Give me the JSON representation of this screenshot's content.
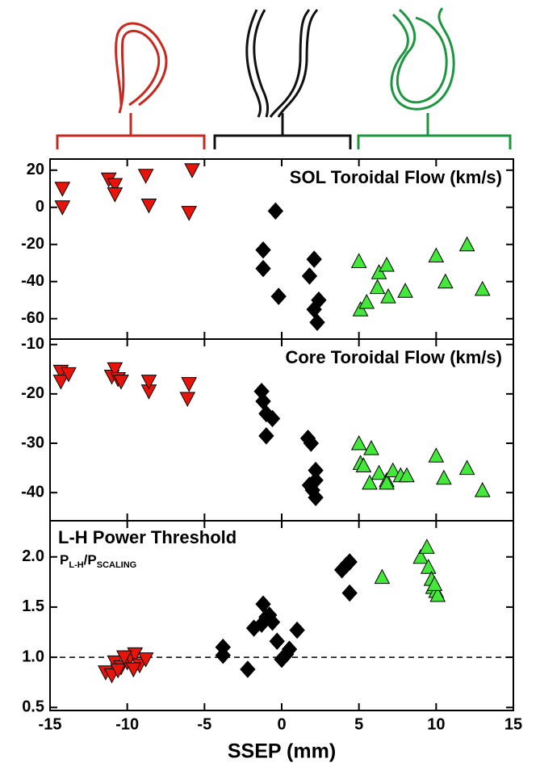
{
  "chart_data": [
    {
      "type": "scatter",
      "title": "SOL Toroidal Flow (km/s)",
      "xlim": [
        -15,
        15
      ],
      "xticks": [
        -15,
        -10,
        -5,
        0,
        5,
        10,
        15
      ],
      "ylim": [
        -71,
        26
      ],
      "yticks": [
        20,
        0,
        -20,
        -40,
        -60
      ],
      "series": [
        {
          "color": "#e8140c",
          "marker": "triangle-down",
          "x": [
            -14.2,
            -14.2,
            -11.2,
            -10.8,
            -10.8,
            -8.8,
            -8.6,
            -5.8,
            -6.0
          ],
          "values": [
            10,
            0,
            15,
            12,
            7,
            17,
            1,
            20,
            -3
          ]
        },
        {
          "color": "#000000",
          "marker": "diamond",
          "x": [
            -0.4,
            -1.2,
            -1.2,
            -0.2,
            1.8,
            2.1,
            2.4,
            2.1,
            2.3
          ],
          "values": [
            -2,
            -23,
            -33,
            -48,
            -37,
            -28,
            -50,
            -55,
            -62
          ]
        },
        {
          "color": "#44e83a",
          "marker": "triangle-up",
          "x": [
            5.0,
            5.1,
            5.5,
            6.2,
            6.3,
            6.8,
            6.9,
            8.0,
            10.0,
            10.6,
            12.0,
            13.0
          ],
          "values": [
            -29,
            -55,
            -51,
            -43,
            -35,
            -31,
            -48,
            -45,
            -26,
            -40,
            -20,
            -44
          ]
        }
      ]
    },
    {
      "type": "scatter",
      "title": "Core Toroidal Flow (km/s)",
      "xlim": [
        -15,
        15
      ],
      "xticks": [
        -15,
        -10,
        -5,
        0,
        5,
        10,
        15
      ],
      "ylim": [
        -45.7,
        -8.9
      ],
      "yticks": [
        -10,
        -20,
        -30,
        -40
      ],
      "series": [
        {
          "color": "#e8140c",
          "marker": "triangle-down",
          "x": [
            -14.3,
            -14.3,
            -13.8,
            -11.0,
            -10.8,
            -10.6,
            -10.4,
            -8.6,
            -8.6,
            -6.0,
            -6.1
          ],
          "values": [
            -15.5,
            -17.5,
            -16,
            -16.5,
            -15,
            -17,
            -17.5,
            -19.5,
            -17.5,
            -18,
            -21
          ]
        },
        {
          "color": "#000000",
          "marker": "diamond",
          "x": [
            -1.3,
            -1.2,
            -1.0,
            -0.6,
            -1.0,
            1.7,
            1.9,
            2.2,
            2.2,
            1.8,
            2.0,
            2.2
          ],
          "values": [
            -19.5,
            -21.5,
            -24,
            -25,
            -28.5,
            -29,
            -30,
            -35.5,
            -37.5,
            -38.5,
            -39.5,
            -41
          ]
        },
        {
          "color": "#44e83a",
          "marker": "triangle-up",
          "x": [
            5.0,
            5.1,
            5.3,
            5.7,
            6.3,
            5.8,
            6.8,
            6.8,
            7.2,
            7.7,
            8.1,
            10.0,
            10.5,
            12.0,
            13.0
          ],
          "values": [
            -30,
            -34,
            -34.5,
            -38,
            -36,
            -31,
            -37.5,
            -38,
            -35.5,
            -36.5,
            -36.5,
            -32.5,
            -37,
            -35,
            -39.5
          ]
        }
      ]
    },
    {
      "type": "scatter",
      "title": "L-H Power Threshold",
      "subtitle_parts": [
        "P",
        "L-H",
        "/P",
        "SCALING"
      ],
      "xlabel": "SSEP (mm)",
      "xlim": [
        -15,
        15
      ],
      "xticks": [
        -15,
        -10,
        -5,
        0,
        5,
        10,
        15
      ],
      "ylim": [
        0.47,
        2.36
      ],
      "yticks": [
        {
          "value": 2,
          "label": "2.0"
        },
        1.5,
        {
          "value": 1,
          "label": "1.0"
        },
        0.5
      ],
      "hline": 1,
      "series": [
        {
          "color": "#e8140c",
          "marker": "triangle-down",
          "x": [
            -11.4,
            -11.0,
            -10.8,
            -10.4,
            -10.6,
            -10.0,
            -9.8,
            -9.5,
            -9.2,
            -8.8,
            -9.6,
            -10.2
          ],
          "values": [
            0.85,
            0.82,
            0.95,
            0.9,
            0.87,
            0.95,
            1.0,
            1.03,
            0.92,
            0.98,
            0.88,
            1.0
          ]
        },
        {
          "color": "#000000",
          "marker": "diamond",
          "x": [
            -3.8,
            -3.8,
            -2.2,
            -1.8,
            -1.3,
            -1.2,
            -0.8,
            -0.6,
            -0.3,
            0.0,
            0.3,
            0.5,
            1.0,
            -1.0,
            3.9,
            4.2,
            4.4,
            4.4
          ],
          "values": [
            1.1,
            1.02,
            0.88,
            1.29,
            1.33,
            1.53,
            1.42,
            1.35,
            1.16,
            0.98,
            1.03,
            1.08,
            1.27,
            1.4,
            1.87,
            1.92,
            1.95,
            1.64
          ]
        },
        {
          "color": "#44e83a",
          "marker": "triangle-up",
          "x": [
            6.5,
            9.0,
            9.4,
            9.5,
            9.7,
            9.8,
            10.0,
            10.1,
            9.9
          ],
          "values": [
            1.8,
            2.0,
            2.1,
            1.9,
            1.78,
            1.7,
            1.66,
            1.62,
            1.73
          ]
        }
      ]
    }
  ]
}
